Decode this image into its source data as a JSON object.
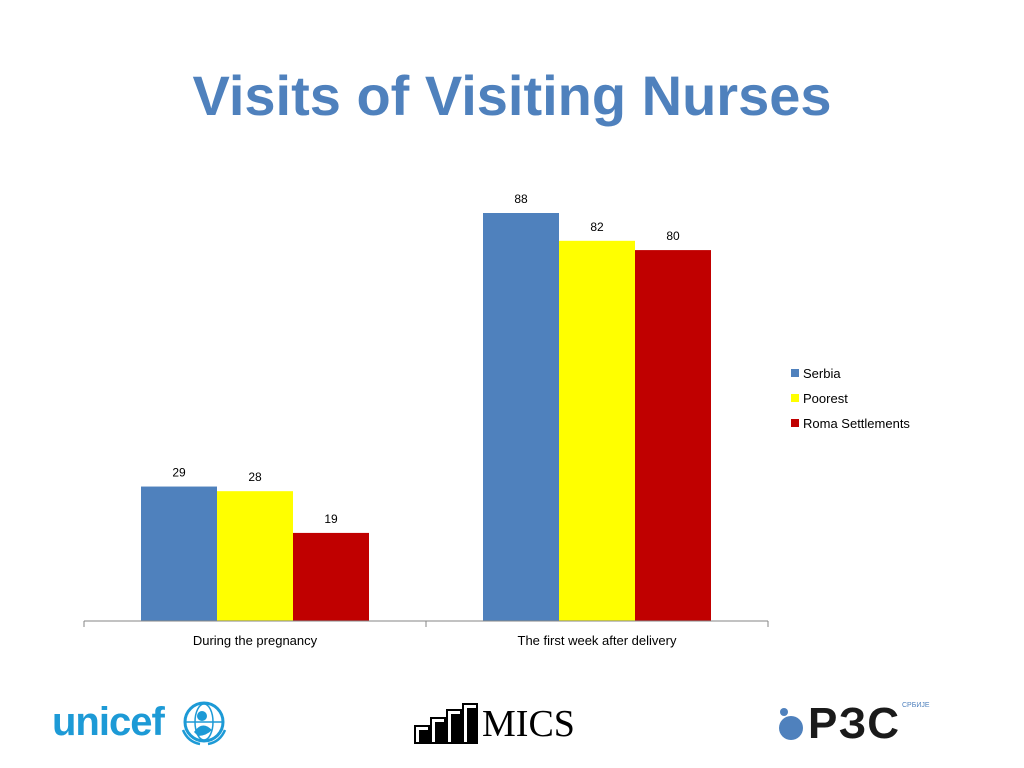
{
  "slide": {
    "title": "Visits of Visiting Nurses"
  },
  "chart_data": {
    "type": "bar",
    "title": "",
    "xlabel": "",
    "ylabel": "",
    "categories": [
      "During the pregnancy",
      "The first week after delivery"
    ],
    "series": [
      {
        "name": "Serbia",
        "values": [
          29,
          88
        ],
        "color": "#4f81bd"
      },
      {
        "name": "Poorest",
        "values": [
          28,
          82
        ],
        "color": "#ffff00"
      },
      {
        "name": "Roma Settlements",
        "values": [
          19,
          80
        ],
        "color": "#c00000"
      }
    ],
    "ylim": [
      0,
      88
    ],
    "grid": false,
    "legend": "right",
    "data_labels": true
  },
  "logos": {
    "unicef": {
      "text": "unicef",
      "color": "#1d9ad6",
      "icon": "unicef-emblem-icon"
    },
    "mics": {
      "text": "MICS",
      "icon": "mics-bars-icon"
    },
    "rzs": {
      "text": "РЗС",
      "small_text": "СРБИЈЕ",
      "icon": "rzs-dot-icon"
    }
  }
}
